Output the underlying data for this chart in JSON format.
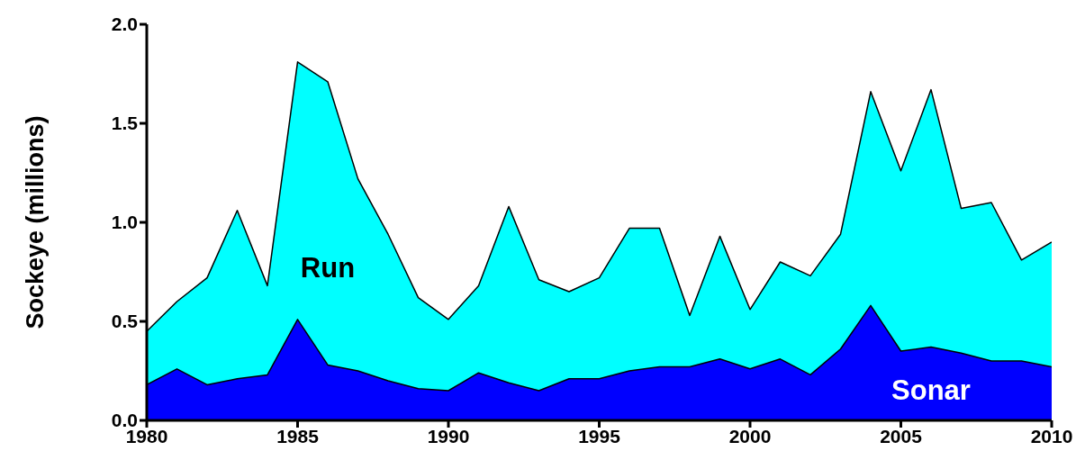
{
  "chart_data": {
    "type": "area",
    "ylabel": "Sockeye (millions)",
    "x": [
      1980,
      1981,
      1982,
      1983,
      1984,
      1985,
      1986,
      1987,
      1988,
      1989,
      1990,
      1991,
      1992,
      1993,
      1994,
      1995,
      1996,
      1997,
      1998,
      1999,
      2000,
      2001,
      2002,
      2003,
      2004,
      2005,
      2006,
      2007,
      2008,
      2009,
      2010
    ],
    "series": [
      {
        "name": "Run",
        "color": "#00ffff",
        "values": [
          0.45,
          0.6,
          0.72,
          1.06,
          0.68,
          1.81,
          1.71,
          1.22,
          0.94,
          0.62,
          0.51,
          0.68,
          1.08,
          0.71,
          0.65,
          0.72,
          0.97,
          0.97,
          0.53,
          0.93,
          0.56,
          0.8,
          0.73,
          0.94,
          1.66,
          1.26,
          1.67,
          1.07,
          1.1,
          0.81,
          0.9
        ]
      },
      {
        "name": "Sonar",
        "color": "#0000ff",
        "values": [
          0.18,
          0.26,
          0.18,
          0.21,
          0.23,
          0.51,
          0.28,
          0.25,
          0.2,
          0.16,
          0.15,
          0.24,
          0.19,
          0.15,
          0.21,
          0.21,
          0.25,
          0.27,
          0.27,
          0.31,
          0.26,
          0.31,
          0.23,
          0.36,
          0.58,
          0.35,
          0.37,
          0.34,
          0.3,
          0.3,
          0.27
        ]
      }
    ],
    "xlim": [
      1980,
      2010
    ],
    "xticks": [
      1980,
      1985,
      1990,
      1995,
      2000,
      2005,
      2010
    ],
    "ylim": [
      0,
      2
    ],
    "yticks": [
      {
        "value": 0,
        "label": "0.0"
      },
      {
        "value": 0.5,
        "label": "0.5"
      },
      {
        "value": 1,
        "label": "1.0"
      },
      {
        "value": 1.5,
        "label": "1.5"
      },
      {
        "value": 2,
        "label": "2.0"
      }
    ],
    "grid": false,
    "legend": false
  }
}
